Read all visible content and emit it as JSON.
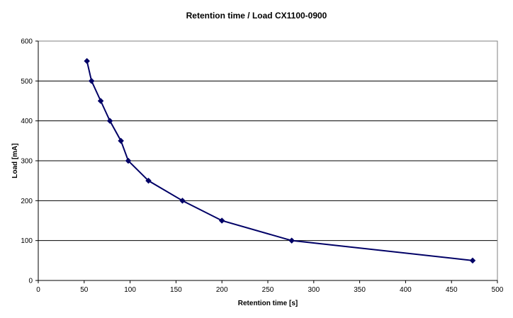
{
  "chart_data": {
    "type": "line",
    "title": "Retention time / Load CX1100-0900",
    "xlabel": "Retention time [s]",
    "ylabel": "Load [mA]",
    "xlim": [
      0,
      500
    ],
    "ylim": [
      0,
      600
    ],
    "xticks": [
      0,
      50,
      100,
      150,
      200,
      250,
      300,
      350,
      400,
      450,
      500
    ],
    "yticks": [
      0,
      100,
      200,
      300,
      400,
      500,
      600
    ],
    "grid": "horizontal",
    "marker": "diamond",
    "series_color": "#000066",
    "series": [
      {
        "points": [
          {
            "x": 53,
            "y": 550
          },
          {
            "x": 58,
            "y": 500
          },
          {
            "x": 68,
            "y": 450
          },
          {
            "x": 78,
            "y": 400
          },
          {
            "x": 90,
            "y": 350
          },
          {
            "x": 98,
            "y": 300
          },
          {
            "x": 120,
            "y": 250
          },
          {
            "x": 157,
            "y": 200
          },
          {
            "x": 200,
            "y": 150
          },
          {
            "x": 276,
            "y": 100
          },
          {
            "x": 473,
            "y": 50
          }
        ]
      }
    ]
  }
}
